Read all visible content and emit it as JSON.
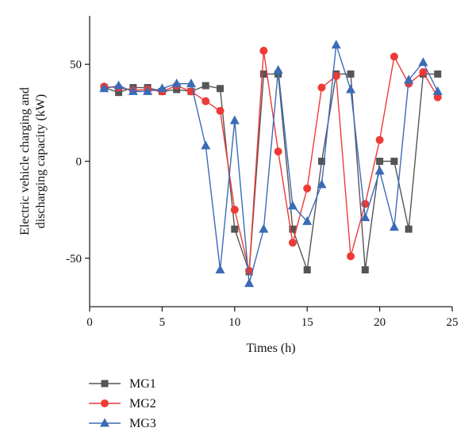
{
  "chart_data": {
    "type": "line",
    "xlabel": "Times (h)",
    "ylabel_lines": [
      "Electric vehicle charging and",
      "discharging capacity (kW)"
    ],
    "xlim": [
      0,
      25
    ],
    "ylim": [
      -75,
      75
    ],
    "xticks": [
      0,
      5,
      10,
      15,
      20,
      25
    ],
    "yticks": [
      -50,
      0,
      50
    ],
    "grid": false,
    "legend_placement": "bottom-left, below plot",
    "x": [
      1,
      2,
      3,
      4,
      5,
      6,
      7,
      8,
      9,
      10,
      11,
      12,
      13,
      14,
      15,
      16,
      17,
      18,
      19,
      20,
      21,
      22,
      23,
      24
    ],
    "series": [
      {
        "name": "MG1",
        "color": "#555555",
        "marker": "square",
        "values": [
          38,
          35.5,
          38,
          38,
          36,
          37,
          36,
          39,
          37.5,
          -35,
          -57,
          45,
          45,
          -35,
          -56,
          0,
          45,
          45,
          -56,
          0,
          0,
          -35,
          45,
          45
        ]
      },
      {
        "name": "MG2",
        "color": "#ee3a36",
        "marker": "circle",
        "values": [
          38.5,
          38,
          36.5,
          37,
          36,
          39,
          36,
          31,
          26,
          -25,
          -56.5,
          57,
          5,
          -42,
          -14,
          38,
          44,
          -49,
          -22,
          11,
          54,
          40,
          46,
          33
        ]
      },
      {
        "name": "MG3",
        "color": "#3a6bb5",
        "marker": "triangle",
        "values": [
          37.5,
          39,
          36,
          36,
          37.5,
          40,
          40,
          8,
          -56,
          21,
          -63,
          -35,
          47,
          -23,
          -31,
          -12,
          60,
          37,
          -29,
          -5,
          -34,
          42,
          51,
          36
        ]
      }
    ]
  }
}
